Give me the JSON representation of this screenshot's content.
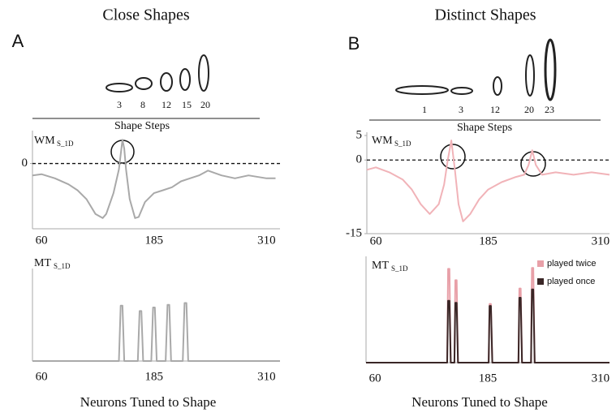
{
  "panels": [
    {
      "letter": "A",
      "title": "Close Shapes",
      "shape_steps": [
        3,
        8,
        12,
        15,
        20
      ],
      "shape_steps_label": "Shape Steps"
    },
    {
      "letter": "B",
      "title": "Distinct Shapes",
      "shape_steps": [
        1,
        3,
        12,
        20,
        23
      ],
      "shape_steps_label": "Shape Steps"
    }
  ],
  "chart_data": [
    {
      "type": "line",
      "ylabel": "WM",
      "ylabel_sub": "S_1D",
      "color": "#a9a9a9",
      "zero_line": true,
      "xlim": [
        50,
        325
      ],
      "xticks": [
        60,
        185,
        310
      ],
      "ylim": [
        -11,
        5
      ],
      "yticks": [
        0
      ],
      "x": [
        50,
        60,
        75,
        90,
        100,
        110,
        120,
        128,
        132,
        140,
        146,
        150,
        152,
        154,
        158,
        164,
        168,
        175,
        185,
        195,
        205,
        215,
        225,
        235,
        245,
        260,
        275,
        290,
        310,
        320
      ],
      "values": [
        -2,
        -1.8,
        -2.5,
        -3.5,
        -4.5,
        -6,
        -8.5,
        -9.2,
        -8.5,
        -5,
        -1,
        4,
        2.5,
        -1,
        -6,
        -9.2,
        -9,
        -6.5,
        -5,
        -4.5,
        -4,
        -3,
        -2.5,
        -2,
        -1.2,
        -2,
        -2.5,
        -2,
        -2.5,
        -2.5
      ]
    },
    {
      "type": "line",
      "ylabel": "WM",
      "ylabel_sub": "S_1D",
      "color": "#f1b3b8",
      "zero_line": true,
      "xlim": [
        50,
        320
      ],
      "xticks": [
        60,
        185,
        310
      ],
      "ylim": [
        -15,
        5
      ],
      "yticks": [
        -15,
        0,
        5
      ],
      "x": [
        50,
        60,
        75,
        90,
        100,
        110,
        120,
        130,
        136,
        140,
        144,
        148,
        152,
        157,
        165,
        175,
        185,
        200,
        215,
        225,
        230,
        234,
        238,
        245,
        260,
        280,
        300,
        320
      ],
      "values": [
        -2,
        -1.5,
        -2.5,
        -4,
        -6,
        -9,
        -11,
        -9,
        -5,
        0,
        4,
        -2,
        -9,
        -12.5,
        -11,
        -8,
        -6,
        -4.5,
        -3.5,
        -3,
        -1,
        2,
        -1,
        -3,
        -2.5,
        -3,
        -2.5,
        -3
      ]
    },
    {
      "type": "line",
      "ylabel": "MT",
      "ylabel_sub": "S_1D",
      "xlabel": "Neurons Tuned to Shape",
      "color": "#a9a9a9",
      "xlim": [
        50,
        325
      ],
      "xticks": [
        60,
        185,
        310
      ],
      "ylim": [
        0,
        1
      ],
      "x": [
        50,
        146,
        148,
        150,
        152,
        167,
        169,
        171,
        173,
        182,
        184,
        186,
        188,
        198,
        200,
        202,
        204,
        217,
        219,
        221,
        223,
        325
      ],
      "values": [
        0,
        0,
        0.62,
        0.62,
        0,
        0,
        0.56,
        0.56,
        0,
        0,
        0.6,
        0.6,
        0,
        0,
        0.63,
        0.63,
        0,
        0,
        0.65,
        0.65,
        0,
        0
      ]
    },
    {
      "type": "line",
      "ylabel": "MT",
      "ylabel_sub": "S_1D",
      "xlabel": "Neurons Tuned to Shape",
      "xlim": [
        50,
        320
      ],
      "xticks": [
        60,
        185,
        310
      ],
      "ylim": [
        0,
        1
      ],
      "x": [
        50,
        140,
        141,
        142.5,
        144,
        148,
        149,
        150.5,
        152,
        186,
        187,
        188.5,
        190,
        219,
        220,
        221.5,
        223,
        233,
        234,
        235.5,
        237,
        320
      ],
      "series": [
        {
          "name": "played twice",
          "color": "#e8a0a8",
          "values": [
            0,
            0,
            0.91,
            0.91,
            0,
            0,
            0.8,
            0.8,
            0,
            0,
            0.57,
            0.57,
            0,
            0,
            0.72,
            0.72,
            0,
            0,
            0.92,
            0.92,
            0,
            0
          ]
        },
        {
          "name": "played once",
          "color": "#3a2626",
          "values": [
            0,
            0,
            0.6,
            0.6,
            0,
            0,
            0.58,
            0.58,
            0,
            0,
            0.55,
            0.55,
            0,
            0,
            0.63,
            0.63,
            0,
            0,
            0.71,
            0.71,
            0,
            0
          ]
        }
      ]
    }
  ]
}
